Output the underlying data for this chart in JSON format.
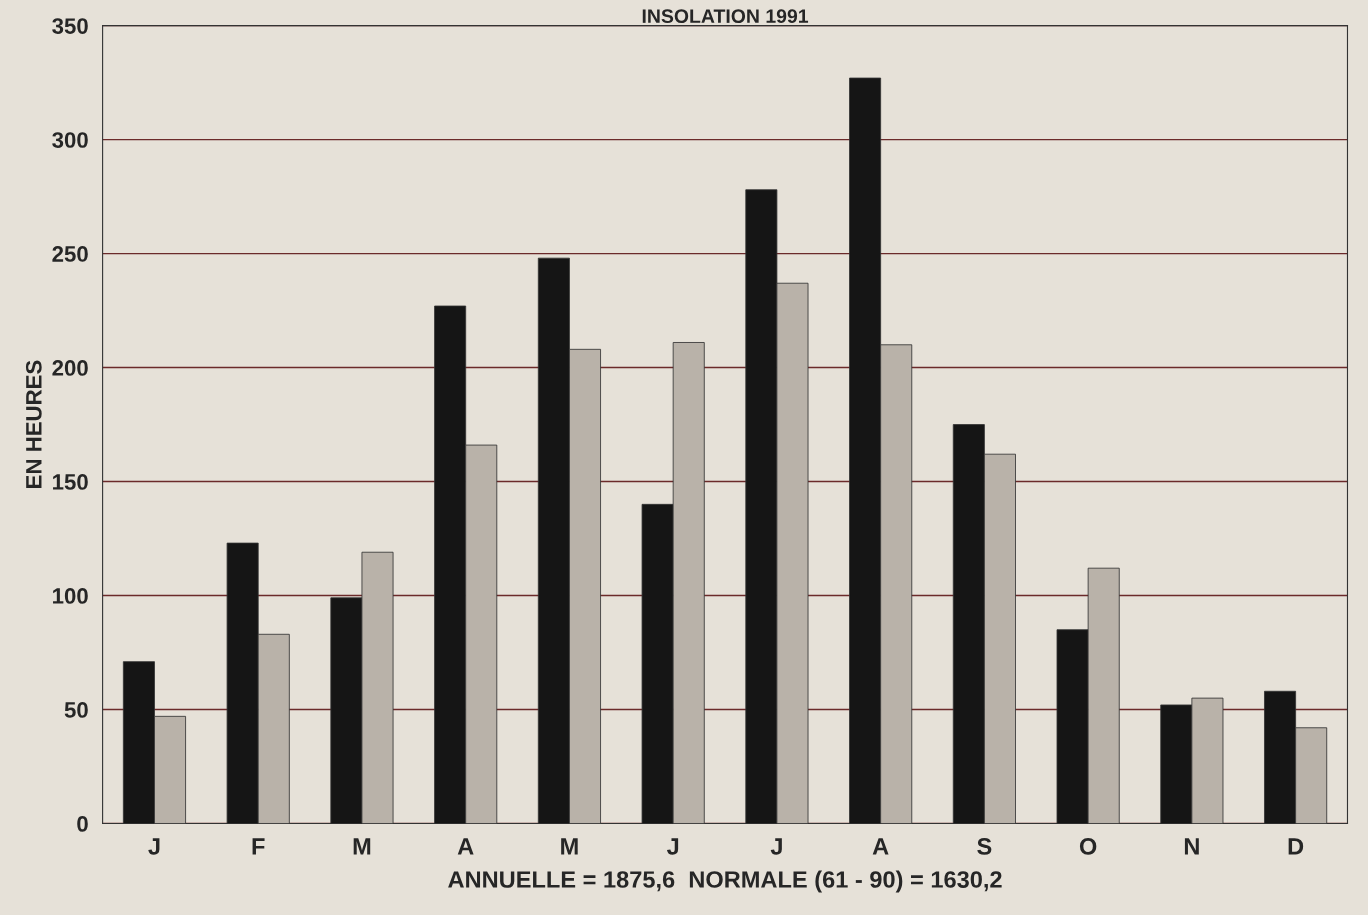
{
  "chart_data": {
    "type": "bar",
    "title": "INSOLATION 1991",
    "ylabel": "EN HEURES",
    "xlabel": "ANNUELLE = 1875,6  NORMALE (61 - 90) = 1630,2",
    "categories": [
      "J",
      "F",
      "M",
      "A",
      "M",
      "J",
      "J",
      "A",
      "S",
      "O",
      "N",
      "D"
    ],
    "series": [
      {
        "color": "#151515",
        "values": [
          71,
          123,
          99,
          227,
          248,
          140,
          278,
          327,
          175,
          85,
          52,
          58
        ]
      },
      {
        "color": "#b9b2a9",
        "values": [
          47,
          83,
          119,
          166,
          208,
          211,
          237,
          210,
          162,
          112,
          55,
          42
        ]
      }
    ],
    "ylim": [
      0,
      350
    ],
    "yticks": [
      0,
      50,
      100,
      150,
      200,
      250,
      300,
      350
    ],
    "grid": "y"
  }
}
